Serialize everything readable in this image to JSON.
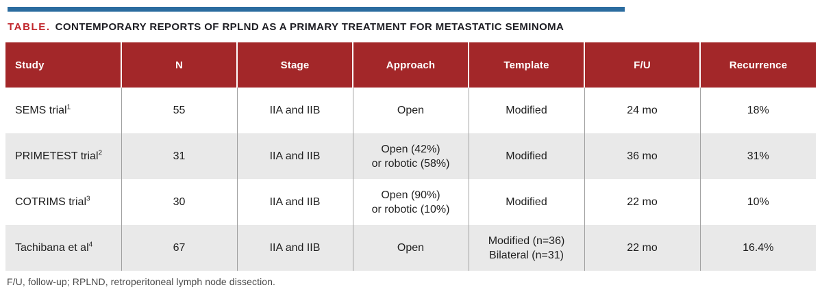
{
  "colors": {
    "top_rule_blue": "#2B6C9F",
    "caption_label_red": "#C1272D",
    "header_bg_red": "#A32729",
    "alt_row_gray": "#E9E9E9",
    "body_text": "#1F1F1F",
    "footnote_text": "#4A4A4A"
  },
  "caption": {
    "label": "TABLE.",
    "title": "CONTEMPORARY REPORTS OF RPLND AS A PRIMARY TREATMENT FOR METASTATIC SEMINOMA"
  },
  "table": {
    "columns": [
      "Study",
      "N",
      "Stage",
      "Approach",
      "Template",
      "F/U",
      "Recurrence"
    ],
    "rows": [
      {
        "study": {
          "name": "SEMS trial",
          "ref": "1"
        },
        "n": "55",
        "stage": "IIA and IIB",
        "approach": {
          "line1": "Open",
          "line2": ""
        },
        "template": {
          "line1": "Modified",
          "line2": ""
        },
        "fu": "24 mo",
        "recurrence": "18%"
      },
      {
        "study": {
          "name": "PRIMETEST trial",
          "ref": "2"
        },
        "n": "31",
        "stage": "IIA and IIB",
        "approach": {
          "line1": "Open (42%)",
          "line2": "or robotic (58%)"
        },
        "template": {
          "line1": "Modified",
          "line2": ""
        },
        "fu": "36 mo",
        "recurrence": "31%"
      },
      {
        "study": {
          "name": "COTRIMS trial",
          "ref": "3"
        },
        "n": "30",
        "stage": "IIA and IIB",
        "approach": {
          "line1": "Open (90%)",
          "line2": "or robotic (10%)"
        },
        "template": {
          "line1": "Modified",
          "line2": ""
        },
        "fu": "22 mo",
        "recurrence": "10%"
      },
      {
        "study": {
          "name": "Tachibana et al",
          "ref": "4"
        },
        "n": "67",
        "stage": "IIA and IIB",
        "approach": {
          "line1": "Open",
          "line2": ""
        },
        "template": {
          "line1": "Modified (n=36)",
          "line2": "Bilateral (n=31)"
        },
        "fu": "22 mo",
        "recurrence": "16.4%"
      }
    ]
  },
  "footnote": "F/U, follow-up; RPLND, retroperitoneal lymph node dissection."
}
